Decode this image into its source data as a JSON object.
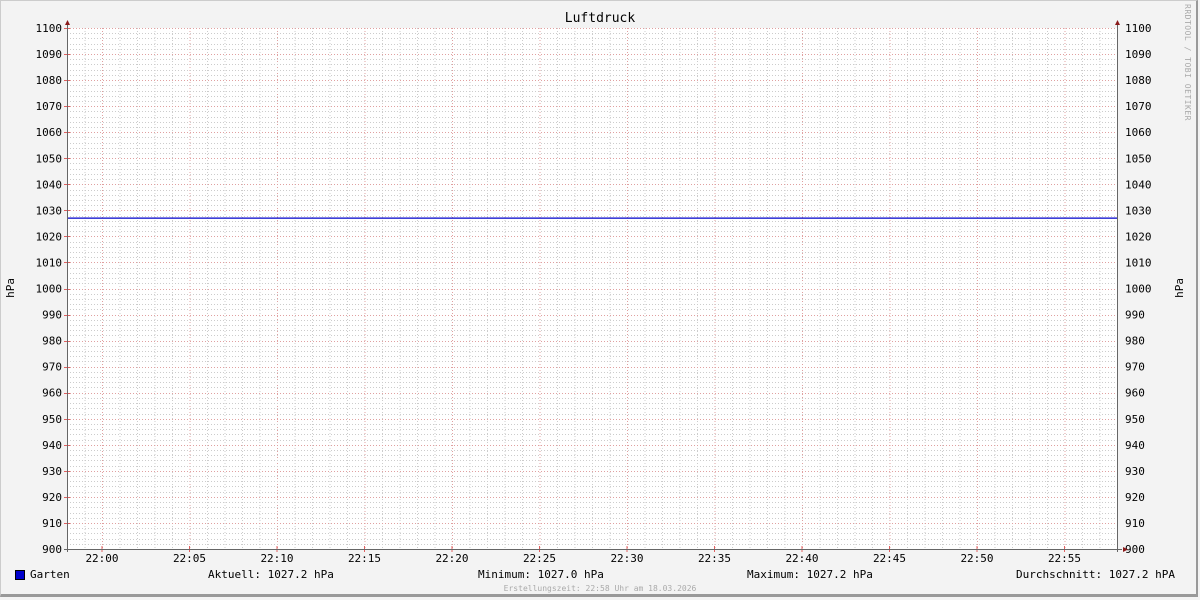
{
  "chart_data": {
    "type": "line",
    "title": "Luftdruck",
    "ylabel": "hPa",
    "ylabel_right": "hPa",
    "ylim": [
      900,
      1100
    ],
    "y_major_step": 10,
    "y_minor_step": 2,
    "yticks": [
      "900",
      "910",
      "920",
      "930",
      "940",
      "950",
      "960",
      "970",
      "980",
      "990",
      "1000",
      "1010",
      "1020",
      "1030",
      "1040",
      "1050",
      "1060",
      "1070",
      "1080",
      "1090",
      "1100"
    ],
    "xlim": [
      "21:58",
      "22:58"
    ],
    "xticks": [
      "22:00",
      "22:05",
      "22:10",
      "22:15",
      "22:20",
      "22:25",
      "22:30",
      "22:35",
      "22:40",
      "22:45",
      "22:50",
      "22:55"
    ],
    "grid": true,
    "legend_placement": "bottom-left",
    "series": [
      {
        "name": "Garten",
        "color": "#0000cc",
        "x": [
          "21:58",
          "22:58"
        ],
        "values": [
          1027.2,
          1027.2
        ]
      }
    ]
  },
  "legend": {
    "series_name": "Garten",
    "current": "Aktuell: 1027.2 hPa",
    "minimum": "Minimum: 1027.0 hPa",
    "maximum": "Maximum: 1027.2 hPa",
    "average": "Durchschnitt: 1027.2 hPA"
  },
  "watermark": "RRDTOOL / TOBI OETIKER",
  "footer": "Erstellungszeit: 22:58 Uhr am 18.03.2026",
  "colors": {
    "major_grid": "#e0a0a0",
    "minor_grid": "#cccccc",
    "axis": "#666666",
    "arrow": "#8b1a1a"
  }
}
